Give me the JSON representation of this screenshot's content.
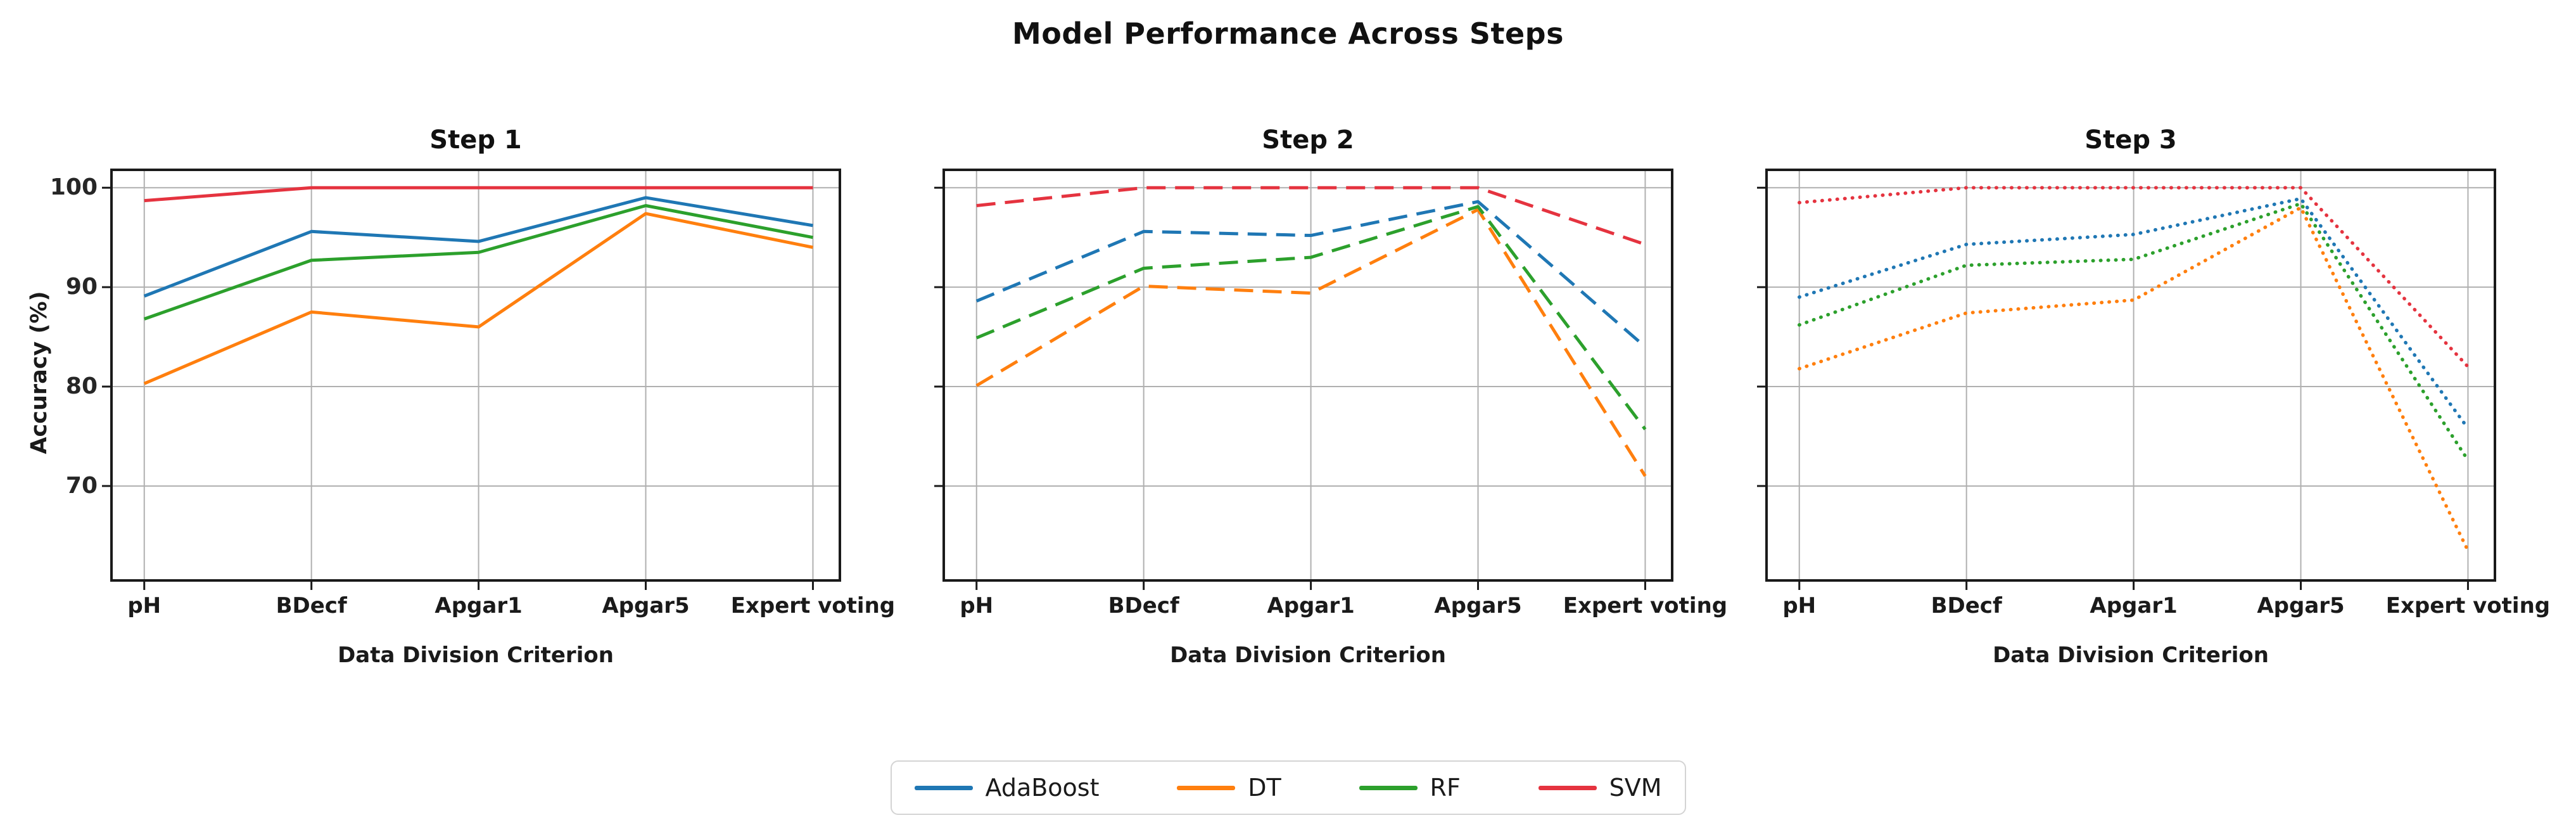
{
  "figure": {
    "title": "Model Performance Across Steps",
    "background": "#ffffff"
  },
  "axes": {
    "ylabel": "Accuracy (%)",
    "xlabel": "Data Division Criterion",
    "categories": [
      "pH",
      "BDecf",
      "Apgar1",
      "Apgar5",
      "Expert voting"
    ],
    "yticks": [
      100,
      90,
      80,
      70
    ]
  },
  "colors": {
    "AdaBoost": "#1f77b4",
    "DT": "#ff7f0e",
    "RF": "#2ca02c",
    "SVM": "#e5333f",
    "grid": "#b0b0b0",
    "spine": "#1a1a1a"
  },
  "legend": {
    "position": "bottom-center",
    "entries": [
      {
        "label": "AdaBoost",
        "color": "#1f77b4"
      },
      {
        "label": "DT",
        "color": "#ff7f0e"
      },
      {
        "label": "RF",
        "color": "#2ca02c"
      },
      {
        "label": "SVM",
        "color": "#e5333f"
      }
    ]
  },
  "chart_data": [
    {
      "type": "line",
      "title": "Step 1",
      "line_style": "solid",
      "categories": [
        "pH",
        "BDecf",
        "Apgar1",
        "Apgar5",
        "Expert voting"
      ],
      "xlabel": "Data Division Criterion",
      "ylabel": "Accuracy (%)",
      "ylim": [
        60.5,
        101.8
      ],
      "yticks": [
        70,
        80,
        90,
        100
      ],
      "grid": true,
      "series": [
        {
          "name": "AdaBoost",
          "color": "#1f77b4",
          "values": [
            89.1,
            95.6,
            94.6,
            99.0,
            96.2
          ]
        },
        {
          "name": "DT",
          "color": "#ff7f0e",
          "values": [
            80.3,
            87.5,
            86.0,
            97.4,
            94.0
          ]
        },
        {
          "name": "RF",
          "color": "#2ca02c",
          "values": [
            86.8,
            92.7,
            93.5,
            98.2,
            95.0
          ]
        },
        {
          "name": "SVM",
          "color": "#e5333f",
          "values": [
            98.7,
            100.0,
            100.0,
            100.0,
            100.0
          ]
        }
      ]
    },
    {
      "type": "line",
      "title": "Step 2",
      "line_style": "dashed",
      "categories": [
        "pH",
        "BDecf",
        "Apgar1",
        "Apgar5",
        "Expert voting"
      ],
      "xlabel": "Data Division Criterion",
      "ylabel": "Accuracy (%)",
      "ylim": [
        60.5,
        101.8
      ],
      "yticks": [
        70,
        80,
        90,
        100
      ],
      "grid": true,
      "series": [
        {
          "name": "AdaBoost",
          "color": "#1f77b4",
          "values": [
            88.6,
            95.6,
            95.2,
            98.6,
            84.0
          ]
        },
        {
          "name": "DT",
          "color": "#ff7f0e",
          "values": [
            80.1,
            90.1,
            89.4,
            97.8,
            71.0
          ]
        },
        {
          "name": "RF",
          "color": "#2ca02c",
          "values": [
            84.9,
            91.9,
            93.0,
            98.1,
            75.7
          ]
        },
        {
          "name": "SVM",
          "color": "#e5333f",
          "values": [
            98.2,
            100.0,
            100.0,
            100.0,
            94.3
          ]
        }
      ]
    },
    {
      "type": "line",
      "title": "Step 3",
      "line_style": "dotted",
      "categories": [
        "pH",
        "BDecf",
        "Apgar1",
        "Apgar5",
        "Expert voting"
      ],
      "xlabel": "Data Division Criterion",
      "ylabel": "Accuracy (%)",
      "ylim": [
        60.5,
        101.8
      ],
      "yticks": [
        70,
        80,
        90,
        100
      ],
      "grid": true,
      "series": [
        {
          "name": "AdaBoost",
          "color": "#1f77b4",
          "values": [
            89.0,
            94.3,
            95.3,
            98.9,
            75.8
          ]
        },
        {
          "name": "DT",
          "color": "#ff7f0e",
          "values": [
            81.8,
            87.4,
            88.7,
            98.0,
            63.5
          ]
        },
        {
          "name": "RF",
          "color": "#2ca02c",
          "values": [
            86.2,
            92.2,
            92.8,
            98.4,
            72.6
          ]
        },
        {
          "name": "SVM",
          "color": "#e5333f",
          "values": [
            98.5,
            100.0,
            100.0,
            100.0,
            82.0
          ]
        }
      ]
    }
  ]
}
